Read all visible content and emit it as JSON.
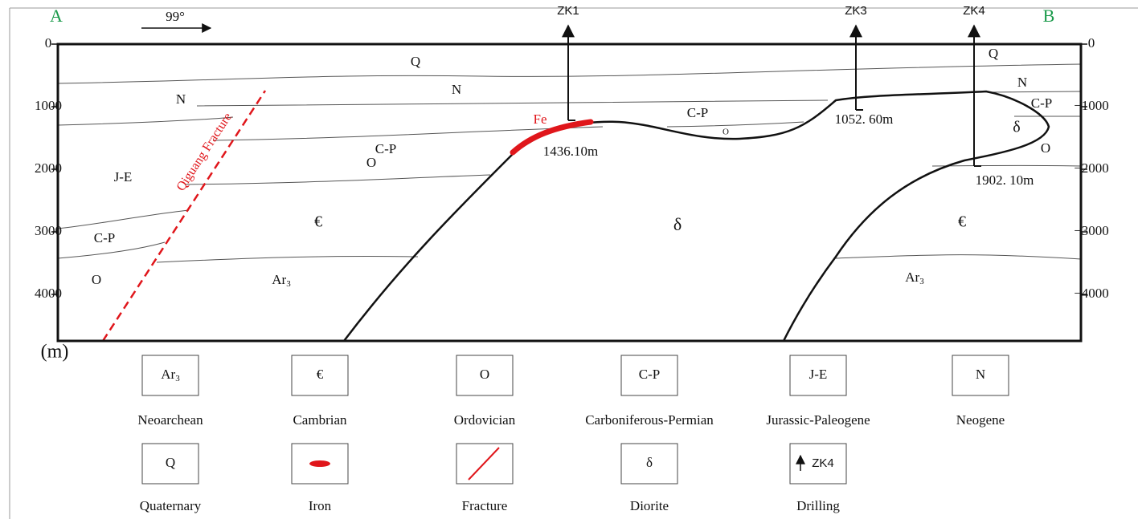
{
  "header": {
    "start": "A",
    "end": "B",
    "azimuth": "99°"
  },
  "depth_axis": {
    "unit": "(m)",
    "left_ticks": [
      "0",
      "1000",
      "2000",
      "3000",
      "4000"
    ],
    "right_ticks": [
      "0",
      "−1000",
      "−2000",
      "−3000",
      "−4000"
    ]
  },
  "drill_holes": [
    {
      "name": "ZK1",
      "depth": "1436.10m"
    },
    {
      "name": "ZK3",
      "depth": "1052. 60m"
    },
    {
      "name": "ZK4",
      "depth": "1902. 10m"
    }
  ],
  "section_labels": {
    "Q": [
      "Q",
      "Q"
    ],
    "N": [
      "N",
      "N",
      "N"
    ],
    "CP": [
      "C-P",
      "C-P",
      "C-P",
      "C-P"
    ],
    "O": [
      "O",
      "O",
      "O",
      "O"
    ],
    "JE": [
      "J-E"
    ],
    "Cm": [
      "€",
      "€"
    ],
    "Ar": [
      {
        "text": "Ar",
        "sub": "3"
      },
      {
        "text": "Ar",
        "sub": "3"
      }
    ],
    "delta": [
      "δ",
      "δ"
    ]
  },
  "ore": "Fe",
  "fault": "Qiguang  Fracture",
  "legend": [
    {
      "symbol": {
        "text": "Ar",
        "sub": "3"
      },
      "name": "Neoarchean"
    },
    {
      "symbol": "€",
      "name": "Cambrian"
    },
    {
      "symbol": "O",
      "name": "Ordovician"
    },
    {
      "symbol": "C-P",
      "name": "Carboniferous-Permian"
    },
    {
      "symbol": "J-E",
      "name": "Jurassic-Paleogene"
    },
    {
      "symbol": "N",
      "name": "Neogene"
    },
    {
      "symbol": "Q",
      "name": "Quaternary"
    },
    {
      "name": "Iron"
    },
    {
      "name": "Fracture"
    },
    {
      "symbol": "δ",
      "name": "Diorite"
    },
    {
      "symbol": "ZK4",
      "name": "Drilling"
    }
  ]
}
